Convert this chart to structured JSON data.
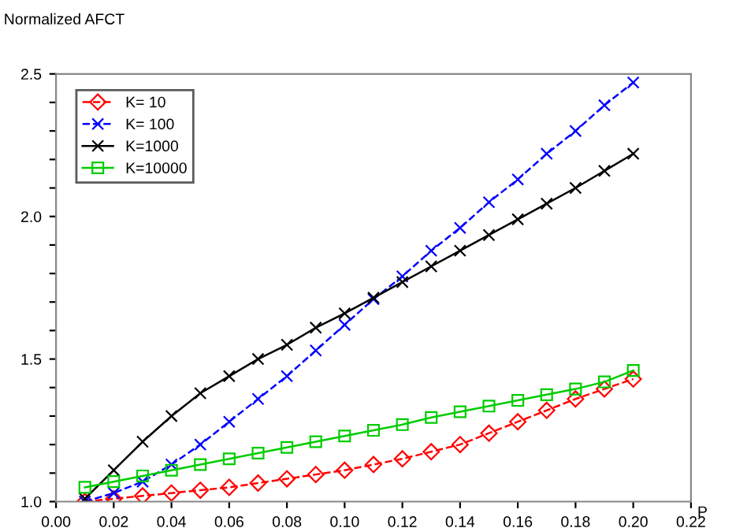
{
  "chart_data": {
    "type": "line",
    "xlabel": "P",
    "ylabel": "Normalized AFCT",
    "x": [
      0.01,
      0.02,
      0.03,
      0.04,
      0.05,
      0.06,
      0.07,
      0.08,
      0.09,
      0.1,
      0.11,
      0.12,
      0.13,
      0.14,
      0.15,
      0.16,
      0.17,
      0.18,
      0.19,
      0.2
    ],
    "series": [
      {
        "name": "K= 10",
        "color": "#ff0000",
        "marker": "diamond",
        "line_style": "dashed",
        "values": [
          1.0,
          1.01,
          1.02,
          1.03,
          1.04,
          1.05,
          1.065,
          1.08,
          1.095,
          1.11,
          1.13,
          1.15,
          1.175,
          1.2,
          1.24,
          1.28,
          1.32,
          1.36,
          1.395,
          1.43
        ]
      },
      {
        "name": "K= 100",
        "color": "#0000ff",
        "marker": "cross",
        "line_style": "dashed",
        "values": [
          1.0,
          1.03,
          1.07,
          1.13,
          1.2,
          1.28,
          1.36,
          1.44,
          1.53,
          1.62,
          1.71,
          1.79,
          1.88,
          1.96,
          2.05,
          2.13,
          2.22,
          2.3,
          2.39,
          2.47
        ]
      },
      {
        "name": "K=1000",
        "color": "#000000",
        "marker": "cross",
        "line_style": "solid",
        "values": [
          1.01,
          1.11,
          1.21,
          1.3,
          1.38,
          1.44,
          1.5,
          1.55,
          1.61,
          1.66,
          1.715,
          1.77,
          1.825,
          1.88,
          1.935,
          1.99,
          2.045,
          2.1,
          2.16,
          2.22
        ]
      },
      {
        "name": "K=10000",
        "color": "#00cc00",
        "marker": "square",
        "line_style": "solid",
        "values": [
          1.05,
          1.07,
          1.09,
          1.11,
          1.13,
          1.15,
          1.17,
          1.19,
          1.21,
          1.23,
          1.25,
          1.27,
          1.295,
          1.315,
          1.335,
          1.355,
          1.375,
          1.395,
          1.42,
          1.46
        ]
      }
    ],
    "xlim": [
      0.0,
      0.22
    ],
    "ylim": [
      1.0,
      2.5
    ],
    "xticks": [
      {
        "value": 0.0,
        "label": "0.00"
      },
      {
        "value": 0.02,
        "label": "0.02"
      },
      {
        "value": 0.04,
        "label": "0.04"
      },
      {
        "value": 0.06,
        "label": "0.06"
      },
      {
        "value": 0.08,
        "label": "0.08"
      },
      {
        "value": 0.1,
        "label": "0.10"
      },
      {
        "value": 0.12,
        "label": "0.12"
      },
      {
        "value": 0.14,
        "label": "0.14"
      },
      {
        "value": 0.16,
        "label": "0.16"
      },
      {
        "value": 0.18,
        "label": "0.18"
      },
      {
        "value": 0.2,
        "label": "0.20"
      },
      {
        "value": 0.22,
        "label": "0.22"
      }
    ],
    "yticks": [
      {
        "value": 1.0,
        "label": "1.0"
      },
      {
        "value": 1.1,
        "label": null
      },
      {
        "value": 1.2,
        "label": null
      },
      {
        "value": 1.3,
        "label": null
      },
      {
        "value": 1.4,
        "label": null
      },
      {
        "value": 1.5,
        "label": "1.5"
      },
      {
        "value": 1.6,
        "label": null
      },
      {
        "value": 1.7,
        "label": null
      },
      {
        "value": 1.8,
        "label": null
      },
      {
        "value": 1.9,
        "label": null
      },
      {
        "value": 2.0,
        "label": "2.0"
      },
      {
        "value": 2.1,
        "label": null
      },
      {
        "value": 2.2,
        "label": null
      },
      {
        "value": 2.3,
        "label": null
      },
      {
        "value": 2.4,
        "label": null
      },
      {
        "value": 2.5,
        "label": "2.5"
      }
    ],
    "grid": false,
    "legend": "top left"
  }
}
